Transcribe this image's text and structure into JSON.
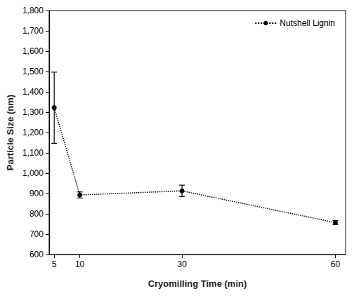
{
  "chart_data": {
    "type": "line",
    "x_label": "Cryomilling Time (min)",
    "y_label": "Particle Size (nm)",
    "x": [
      5,
      10,
      30,
      60
    ],
    "series": [
      {
        "name": "Nutshell Lignin",
        "color": "#000000",
        "values": [
          1322,
          893,
          913,
          757
        ],
        "errors": [
          175,
          15,
          28,
          10
        ],
        "marker": "circle",
        "line_style": "dotted"
      }
    ],
    "xlim": [
      4,
      62
    ],
    "xticks": [
      5,
      10,
      30,
      60
    ],
    "ylim": [
      600,
      1800
    ],
    "yticks": [
      600,
      700,
      800,
      900,
      1000,
      1100,
      1200,
      1300,
      1400,
      1500,
      1600,
      1700,
      1800
    ],
    "legend": "upper right",
    "grid": false
  }
}
